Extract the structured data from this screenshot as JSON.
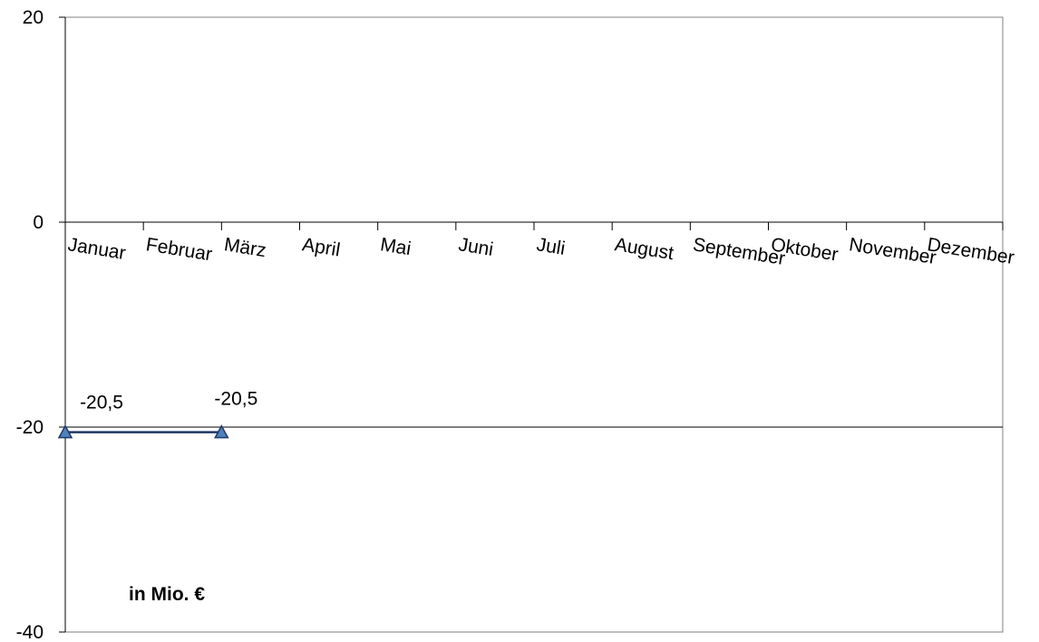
{
  "chart_data": {
    "type": "line",
    "categories": [
      "Januar",
      "Februar",
      "März",
      "April",
      "Mai",
      "Juni",
      "Juli",
      "August",
      "September",
      "Oktober",
      "November",
      "Dezember"
    ],
    "series": [
      {
        "values": [
          -20.5,
          null,
          -20.5,
          null,
          null,
          null,
          null,
          null,
          null,
          null,
          null,
          null
        ],
        "color": "#1F3864",
        "marker": "triangle",
        "marker_color": "#4F81BD"
      }
    ],
    "data_labels": [
      "-20,5",
      "",
      "-20,5",
      "",
      "",
      "",
      "",
      "",
      "",
      "",
      "",
      ""
    ],
    "ylim": [
      -40,
      20
    ],
    "yticks": [
      20,
      0,
      -20,
      -40
    ],
    "ytick_labels": [
      "20",
      "0",
      "-20",
      "-40"
    ],
    "reference_line": -20,
    "unit_label": "in Mio. €",
    "grid": false
  }
}
